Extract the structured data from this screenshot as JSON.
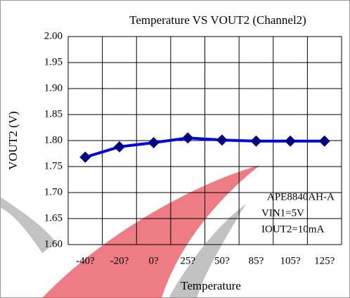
{
  "chart_data": {
    "type": "line",
    "title": "Temperature VS VOUT2 (Channel2)",
    "x_label": "Temperature",
    "y_label": "VOUT2 (V)",
    "categories": [
      "-40?",
      "-20?",
      "0?",
      "25?",
      "50?",
      "85?",
      "105?",
      "125?"
    ],
    "series": [
      {
        "name": "VOUT2",
        "color": "#0000e6",
        "marker_color": "#000080",
        "values": [
          1.768,
          1.788,
          1.796,
          1.805,
          1.801,
          1.799,
          1.799,
          1.799
        ]
      }
    ],
    "ylim": [
      1.6,
      2.0
    ],
    "yticks": [
      {
        "value": 1.6,
        "label": "1.60"
      },
      1.65,
      {
        "value": 1.7,
        "label": "1.70"
      },
      1.75,
      {
        "value": 1.8,
        "label": "1.80"
      },
      1.85,
      {
        "value": 1.9,
        "label": "1.90"
      },
      1.95,
      {
        "value": 2.0,
        "label": "2.00"
      }
    ],
    "grid": true,
    "annotations": [
      "APE8840AH-A",
      "VIN1=5V",
      "IOUT2=10mA"
    ]
  }
}
